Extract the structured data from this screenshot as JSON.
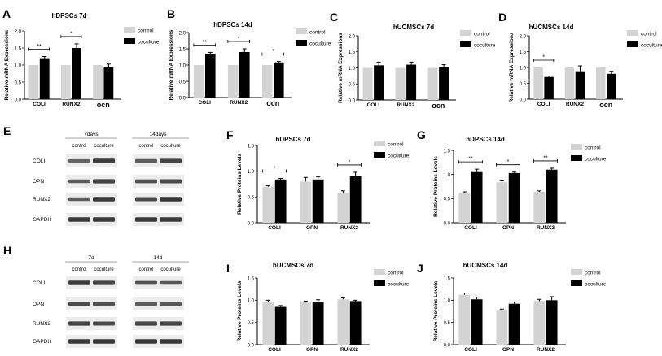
{
  "colors": {
    "control": "#d3d3d3",
    "coculture": "#000000",
    "band": "#2a2a2a",
    "blot_bg": "#ececec"
  },
  "chart_data": [
    {
      "panel": "A",
      "type": "bar",
      "title": "hDPSCs 7d",
      "ylabel": "Relative mRNA Expressions",
      "xlabel": "",
      "ylim": [
        0,
        2.0
      ],
      "yticks": [
        "0.0",
        "0.5",
        "1.0",
        "1.5",
        "2.0"
      ],
      "categories": [
        "COLI",
        "RUNX2",
        "ocn"
      ],
      "legend": [
        "control",
        "coculture"
      ],
      "series": [
        {
          "name": "control",
          "values": [
            1.0,
            1.0,
            1.0
          ],
          "errors": [
            0,
            0,
            0
          ]
        },
        {
          "name": "coculture",
          "values": [
            1.2,
            1.5,
            0.93
          ],
          "errors": [
            0.05,
            0.12,
            0.1
          ]
        }
      ],
      "annotations": [
        {
          "category": "COLI",
          "text": "**"
        },
        {
          "category": "RUNX2",
          "text": "*"
        }
      ]
    },
    {
      "panel": "B",
      "type": "bar",
      "title": "hDPSCs 14d",
      "ylabel": "Relative mRNA Expressions",
      "xlabel": "",
      "ylim": [
        0,
        2.0
      ],
      "yticks": [
        "0.0",
        "0.5",
        "1.0",
        "1.5",
        "2.0"
      ],
      "categories": [
        "COLI",
        "RUNX2",
        "ocn"
      ],
      "legend": [
        "control",
        "coculture"
      ],
      "series": [
        {
          "name": "control",
          "values": [
            1.0,
            1.0,
            1.0
          ],
          "errors": [
            0,
            0,
            0
          ]
        },
        {
          "name": "coculture",
          "values": [
            1.35,
            1.4,
            1.08
          ],
          "errors": [
            0.04,
            0.1,
            0.03
          ]
        }
      ],
      "annotations": [
        {
          "category": "COLI",
          "text": "**"
        },
        {
          "category": "RUNX2",
          "text": "*"
        },
        {
          "category": "ocn",
          "text": "*"
        }
      ]
    },
    {
      "panel": "C",
      "type": "bar",
      "title": "hUCMSCs 7d",
      "ylabel": "Relative mRNA Expressions",
      "xlabel": "",
      "ylim": [
        0,
        2.0
      ],
      "yticks": [
        "0.0",
        "0.5",
        "1.0",
        "1.5",
        "2.0"
      ],
      "categories": [
        "COLI",
        "RUNX2",
        "ocn"
      ],
      "legend": [
        "control",
        "coculture"
      ],
      "series": [
        {
          "name": "control",
          "values": [
            1.0,
            1.0,
            1.0
          ],
          "errors": [
            0,
            0,
            0
          ]
        },
        {
          "name": "coculture",
          "values": [
            1.08,
            1.1,
            1.02
          ],
          "errors": [
            0.1,
            0.08,
            0.08
          ]
        }
      ],
      "annotations": []
    },
    {
      "panel": "D",
      "type": "bar",
      "title": "hUCMSCs 14d",
      "ylabel": "Relative mRNA Expressions",
      "xlabel": "",
      "ylim": [
        0,
        2.0
      ],
      "yticks": [
        "0.0",
        "0.5",
        "1.0",
        "1.5",
        "2.0"
      ],
      "categories": [
        "COLI",
        "RUNX2",
        "ocn"
      ],
      "legend": [
        "control",
        "coculture"
      ],
      "series": [
        {
          "name": "control",
          "values": [
            1.0,
            1.0,
            1.0
          ],
          "errors": [
            0,
            0,
            0
          ]
        },
        {
          "name": "coculture",
          "values": [
            0.7,
            0.88,
            0.8
          ],
          "errors": [
            0.03,
            0.17,
            0.08
          ]
        }
      ],
      "annotations": [
        {
          "category": "COLI",
          "text": "*"
        }
      ]
    },
    {
      "panel": "F",
      "type": "bar",
      "title": "hDPSCs 7d",
      "ylabel": "Relative Proteins Levels",
      "xlabel": "",
      "ylim": [
        0,
        1.5
      ],
      "yticks": [
        "0.0",
        "0.5",
        "1.0",
        "1.5"
      ],
      "categories": [
        "COLI",
        "OPN",
        "RUNX2"
      ],
      "legend": [
        "control",
        "coculture"
      ],
      "series": [
        {
          "name": "control",
          "values": [
            0.7,
            0.8,
            0.58
          ],
          "errors": [
            0.02,
            0.08,
            0.04
          ]
        },
        {
          "name": "coculture",
          "values": [
            0.84,
            0.84,
            0.9
          ],
          "errors": [
            0.02,
            0.05,
            0.08
          ]
        }
      ],
      "annotations": [
        {
          "category": "COLI",
          "text": "*"
        },
        {
          "category": "RUNX2",
          "text": "*"
        }
      ]
    },
    {
      "panel": "G",
      "type": "bar",
      "title": "hDPSCs 14d",
      "ylabel": "Relative Proteins Levels",
      "xlabel": "",
      "ylim": [
        0,
        1.5
      ],
      "yticks": [
        "0.0",
        "0.5",
        "1.0",
        "1.5"
      ],
      "categories": [
        "COLI",
        "OPN",
        "RUNX2"
      ],
      "legend": [
        "control",
        "coculture"
      ],
      "series": [
        {
          "name": "control",
          "values": [
            0.62,
            0.84,
            0.64
          ],
          "errors": [
            0.02,
            0.03,
            0.02
          ]
        },
        {
          "name": "coculture",
          "values": [
            1.05,
            1.03,
            1.1
          ],
          "errors": [
            0.06,
            0.02,
            0.03
          ]
        }
      ],
      "annotations": [
        {
          "category": "COLI",
          "text": "**"
        },
        {
          "category": "OPN",
          "text": "*"
        },
        {
          "category": "RUNX2",
          "text": "**"
        }
      ]
    },
    {
      "panel": "I",
      "type": "bar",
      "title": "hUCMSCs 7d",
      "ylabel": "Relative Proteins Levels",
      "xlabel": "",
      "ylim": [
        0,
        1.5
      ],
      "yticks": [
        "0.0",
        "0.5",
        "1.0",
        "1.5"
      ],
      "categories": [
        "COLI",
        "OPN",
        "RUNX2"
      ],
      "legend": [
        "control",
        "coculture"
      ],
      "series": [
        {
          "name": "control",
          "values": [
            0.95,
            0.95,
            1.02
          ],
          "errors": [
            0.05,
            0.03,
            0.03
          ]
        },
        {
          "name": "coculture",
          "values": [
            0.85,
            0.95,
            0.98
          ],
          "errors": [
            0.03,
            0.06,
            0.02
          ]
        }
      ],
      "annotations": []
    },
    {
      "panel": "J",
      "type": "bar",
      "title": "hUCMSCs 14d",
      "ylabel": "Relative Proteins Levels",
      "xlabel": "",
      "ylim": [
        0,
        1.5
      ],
      "yticks": [
        "0.0",
        "0.5",
        "1.0",
        "1.5"
      ],
      "categories": [
        "COLI",
        "OPN",
        "RUNX2"
      ],
      "legend": [
        "control",
        "coculture"
      ],
      "series": [
        {
          "name": "control",
          "values": [
            1.12,
            0.78,
            0.98
          ],
          "errors": [
            0.04,
            0.02,
            0.04
          ]
        },
        {
          "name": "coculture",
          "values": [
            1.02,
            0.92,
            1.0
          ],
          "errors": [
            0.05,
            0.04,
            0.08
          ]
        }
      ],
      "annotations": []
    }
  ],
  "blots": [
    {
      "panel": "E",
      "groups": [
        {
          "label": "7days",
          "lanes": [
            "control",
            "coculture"
          ]
        },
        {
          "label": "14days",
          "lanes": [
            "control",
            "coculture"
          ]
        }
      ],
      "rows": [
        {
          "label": "COLI",
          "intensity": [
            0.55,
            0.85,
            0.6,
            0.8
          ]
        },
        {
          "label": "OPN",
          "intensity": [
            0.6,
            0.8,
            0.7,
            0.75
          ]
        },
        {
          "label": "RUNX2",
          "intensity": [
            0.6,
            0.85,
            0.75,
            0.9
          ]
        },
        {
          "label": "GAPDH",
          "intensity": [
            0.9,
            0.9,
            0.9,
            0.9
          ]
        }
      ]
    },
    {
      "panel": "H",
      "groups": [
        {
          "label": "7d",
          "lanes": [
            "control",
            "coculture"
          ]
        },
        {
          "label": "14d",
          "lanes": [
            "control",
            "coculture"
          ]
        }
      ],
      "rows": [
        {
          "label": "COLI",
          "intensity": [
            0.85,
            0.8,
            0.7,
            0.65
          ]
        },
        {
          "label": "OPN",
          "intensity": [
            0.75,
            0.7,
            0.6,
            0.65
          ]
        },
        {
          "label": "RUNX2",
          "intensity": [
            0.8,
            0.75,
            0.8,
            0.8
          ]
        },
        {
          "label": "GAPDH",
          "intensity": [
            0.9,
            0.9,
            0.9,
            0.9
          ]
        }
      ]
    }
  ]
}
